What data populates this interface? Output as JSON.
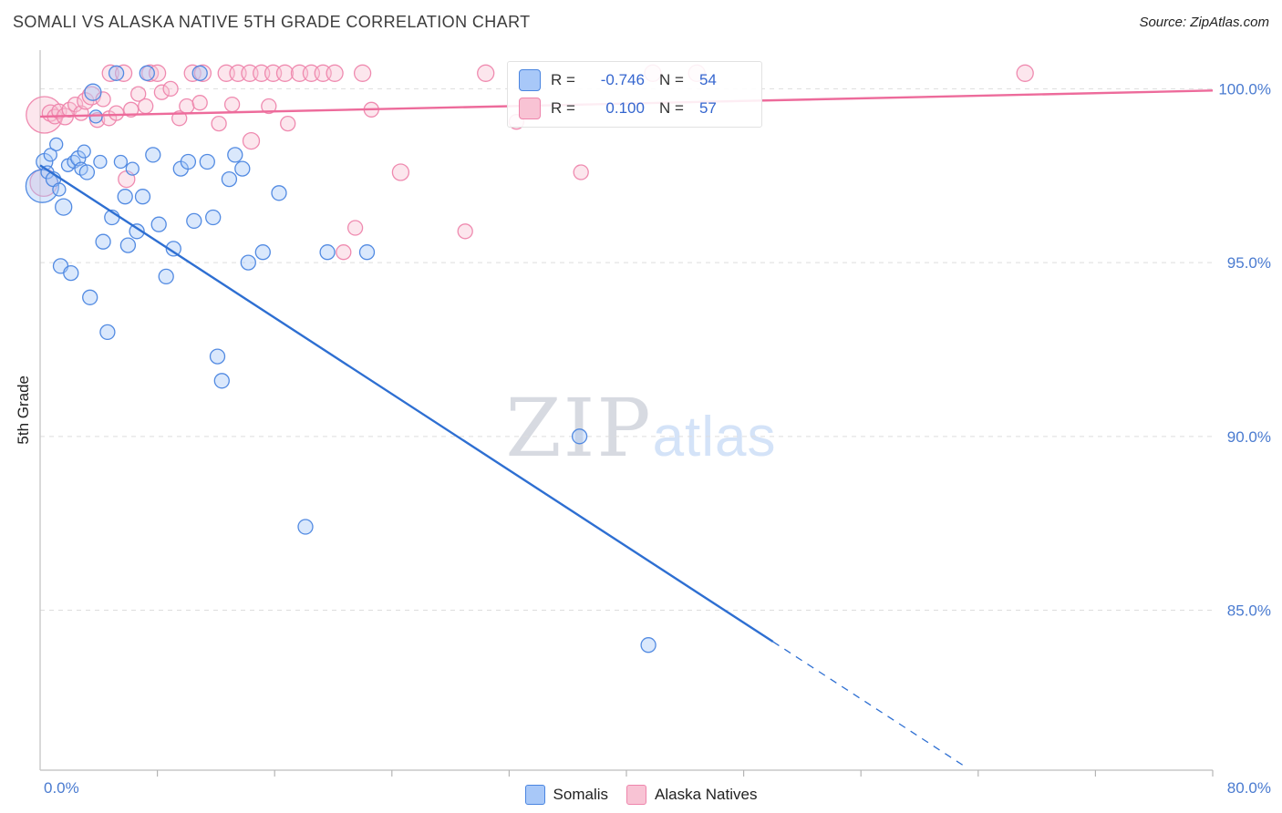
{
  "header": {
    "title": "SOMALI VS ALASKA NATIVE 5TH GRADE CORRELATION CHART",
    "source": "Source: ZipAtlas.com"
  },
  "watermark": {
    "zip": "ZIP",
    "atlas": "atlas"
  },
  "legend_box": {
    "series": [
      {
        "r_label": "R =",
        "r_value": "-0.746",
        "n_label": "N =",
        "n_value": "54"
      },
      {
        "r_label": "R =",
        "r_value": "0.100",
        "n_label": "N =",
        "n_value": "57"
      }
    ]
  },
  "bottom_legend": {
    "items": [
      {
        "label": "Somalis"
      },
      {
        "label": "Alaska Natives"
      }
    ]
  },
  "theme": {
    "grid_color": "#dddddd",
    "axis_color": "#c9c9c9",
    "tick_color": "#b5b5b5",
    "axis_label_blue": "#4a7bd0",
    "accent_blue": "#3566cf",
    "blue_fill": "#a8c8f8",
    "blue_stroke": "#4a85e0",
    "blue_line": "#2e6fd2",
    "pink_fill": "#f8c3d4",
    "pink_stroke": "#ee85ac",
    "pink_line": "#ed6b9b"
  },
  "chart_data": {
    "type": "scatter",
    "title": "SOMALI VS ALASKA NATIVE 5TH GRADE CORRELATION CHART",
    "xlabel": "",
    "ylabel": "5th Grade",
    "legend_position": "top-center",
    "grid": "horizontal-dashed",
    "axes": {
      "x_min": 0,
      "x_max": 80,
      "y_min": 80.4,
      "y_max": 100.85,
      "x_min_label": "0.0%",
      "x_max_label": "80.0%",
      "x_ticks": [
        8,
        16,
        24,
        32,
        40,
        48,
        56,
        64,
        72,
        80
      ],
      "y_ticks": [
        100,
        95,
        90,
        85
      ],
      "y_tick_labels": [
        "100.0%",
        "95.0%",
        "90.0%",
        "85.0%"
      ]
    },
    "series": [
      {
        "name": "Alaska Natives",
        "R": 0.1,
        "N": 57,
        "fill": "#f8c3d4",
        "stroke": "#ee85ac",
        "line": "#ed6b9b",
        "point_name": "alaska-native-point",
        "trend": {
          "x1": 0,
          "y1": 99.2,
          "x2": 80,
          "y2": 99.95,
          "solid_until": 80
        },
        "points": [
          [
            4.8,
            100.45,
            9
          ],
          [
            5.7,
            100.45,
            9
          ],
          [
            7.5,
            100.45,
            9
          ],
          [
            8.0,
            100.45,
            9
          ],
          [
            10.4,
            100.45,
            9
          ],
          [
            11.1,
            100.45,
            9
          ],
          [
            12.7,
            100.45,
            9
          ],
          [
            13.5,
            100.45,
            9
          ],
          [
            14.3,
            100.45,
            9
          ],
          [
            15.1,
            100.45,
            9
          ],
          [
            15.9,
            100.45,
            9
          ],
          [
            16.7,
            100.45,
            9
          ],
          [
            17.7,
            100.45,
            9
          ],
          [
            18.5,
            100.45,
            9
          ],
          [
            19.3,
            100.45,
            9
          ],
          [
            20.1,
            100.45,
            9
          ],
          [
            22.0,
            100.45,
            9
          ],
          [
            30.4,
            100.45,
            9
          ],
          [
            41.8,
            100.45,
            9
          ],
          [
            44.8,
            100.45,
            9
          ],
          [
            67.2,
            100.45,
            9
          ],
          [
            0.3,
            99.25,
            20
          ],
          [
            0.25,
            97.3,
            15
          ],
          [
            0.7,
            99.3,
            9
          ],
          [
            1.0,
            99.2,
            8
          ],
          [
            1.3,
            99.35,
            8
          ],
          [
            1.7,
            99.2,
            9
          ],
          [
            2.0,
            99.4,
            8
          ],
          [
            2.4,
            99.55,
            8
          ],
          [
            2.8,
            99.3,
            8
          ],
          [
            3.1,
            99.65,
            9
          ],
          [
            3.5,
            99.8,
            10
          ],
          [
            3.9,
            99.1,
            8
          ],
          [
            4.3,
            99.7,
            8
          ],
          [
            4.7,
            99.15,
            8
          ],
          [
            5.2,
            99.3,
            8
          ],
          [
            5.9,
            97.4,
            9
          ],
          [
            6.2,
            99.4,
            8
          ],
          [
            6.7,
            99.85,
            8
          ],
          [
            7.2,
            99.5,
            8
          ],
          [
            8.3,
            99.9,
            8
          ],
          [
            8.9,
            100.0,
            8
          ],
          [
            9.5,
            99.15,
            8
          ],
          [
            10.0,
            99.5,
            8
          ],
          [
            10.9,
            99.6,
            8
          ],
          [
            12.2,
            99.0,
            8
          ],
          [
            13.1,
            99.55,
            8
          ],
          [
            14.4,
            98.5,
            9
          ],
          [
            15.6,
            99.5,
            8
          ],
          [
            16.9,
            99.0,
            8
          ],
          [
            20.7,
            95.3,
            8
          ],
          [
            21.5,
            96.0,
            8
          ],
          [
            22.6,
            99.4,
            8
          ],
          [
            24.6,
            97.6,
            9
          ],
          [
            29.0,
            95.9,
            8
          ],
          [
            32.5,
            99.05,
            8
          ],
          [
            36.9,
            97.6,
            8
          ]
        ]
      },
      {
        "name": "Somalis",
        "R": -0.746,
        "N": 54,
        "fill": "#a8c8f8",
        "stroke": "#4a85e0",
        "line": "#2e6fd2",
        "point_name": "somali-point",
        "trend": {
          "x1": 0,
          "y1": 97.8,
          "x2": 63.3,
          "y2": 80.45,
          "solid_until": 50
        },
        "points": [
          [
            0.15,
            97.2,
            18
          ],
          [
            0.3,
            97.9,
            9
          ],
          [
            0.5,
            97.6,
            7
          ],
          [
            0.7,
            98.1,
            7
          ],
          [
            0.9,
            97.4,
            8
          ],
          [
            1.1,
            98.4,
            7
          ],
          [
            1.3,
            97.1,
            7
          ],
          [
            1.4,
            94.9,
            8
          ],
          [
            1.6,
            96.6,
            9
          ],
          [
            1.9,
            97.8,
            7
          ],
          [
            2.1,
            94.7,
            8
          ],
          [
            2.3,
            97.9,
            7
          ],
          [
            2.6,
            98.0,
            8
          ],
          [
            2.8,
            97.7,
            7
          ],
          [
            3.0,
            98.2,
            7
          ],
          [
            3.2,
            97.6,
            8
          ],
          [
            3.4,
            94.0,
            8
          ],
          [
            3.6,
            99.9,
            9
          ],
          [
            3.8,
            99.2,
            7
          ],
          [
            4.1,
            97.9,
            7
          ],
          [
            4.3,
            95.6,
            8
          ],
          [
            4.6,
            93.0,
            8
          ],
          [
            4.9,
            96.3,
            8
          ],
          [
            5.2,
            100.45,
            8
          ],
          [
            5.5,
            97.9,
            7
          ],
          [
            5.8,
            96.9,
            8
          ],
          [
            6.0,
            95.5,
            8
          ],
          [
            6.3,
            97.7,
            7
          ],
          [
            6.6,
            95.9,
            8
          ],
          [
            7.0,
            96.9,
            8
          ],
          [
            7.3,
            100.45,
            8
          ],
          [
            7.7,
            98.1,
            8
          ],
          [
            8.1,
            96.1,
            8
          ],
          [
            8.6,
            94.6,
            8
          ],
          [
            9.1,
            95.4,
            8
          ],
          [
            9.6,
            97.7,
            8
          ],
          [
            10.1,
            97.9,
            8
          ],
          [
            10.5,
            96.2,
            8
          ],
          [
            10.9,
            100.45,
            8
          ],
          [
            11.4,
            97.9,
            8
          ],
          [
            11.8,
            96.3,
            8
          ],
          [
            12.1,
            92.3,
            8
          ],
          [
            12.4,
            91.6,
            8
          ],
          [
            12.9,
            97.4,
            8
          ],
          [
            13.3,
            98.1,
            8
          ],
          [
            13.8,
            97.7,
            8
          ],
          [
            14.2,
            95.0,
            8
          ],
          [
            15.2,
            95.3,
            8
          ],
          [
            16.3,
            97.0,
            8
          ],
          [
            18.1,
            87.4,
            8
          ],
          [
            19.6,
            95.3,
            8
          ],
          [
            22.3,
            95.3,
            8
          ],
          [
            36.8,
            90.0,
            8
          ],
          [
            41.5,
            84.0,
            8
          ]
        ]
      }
    ]
  }
}
